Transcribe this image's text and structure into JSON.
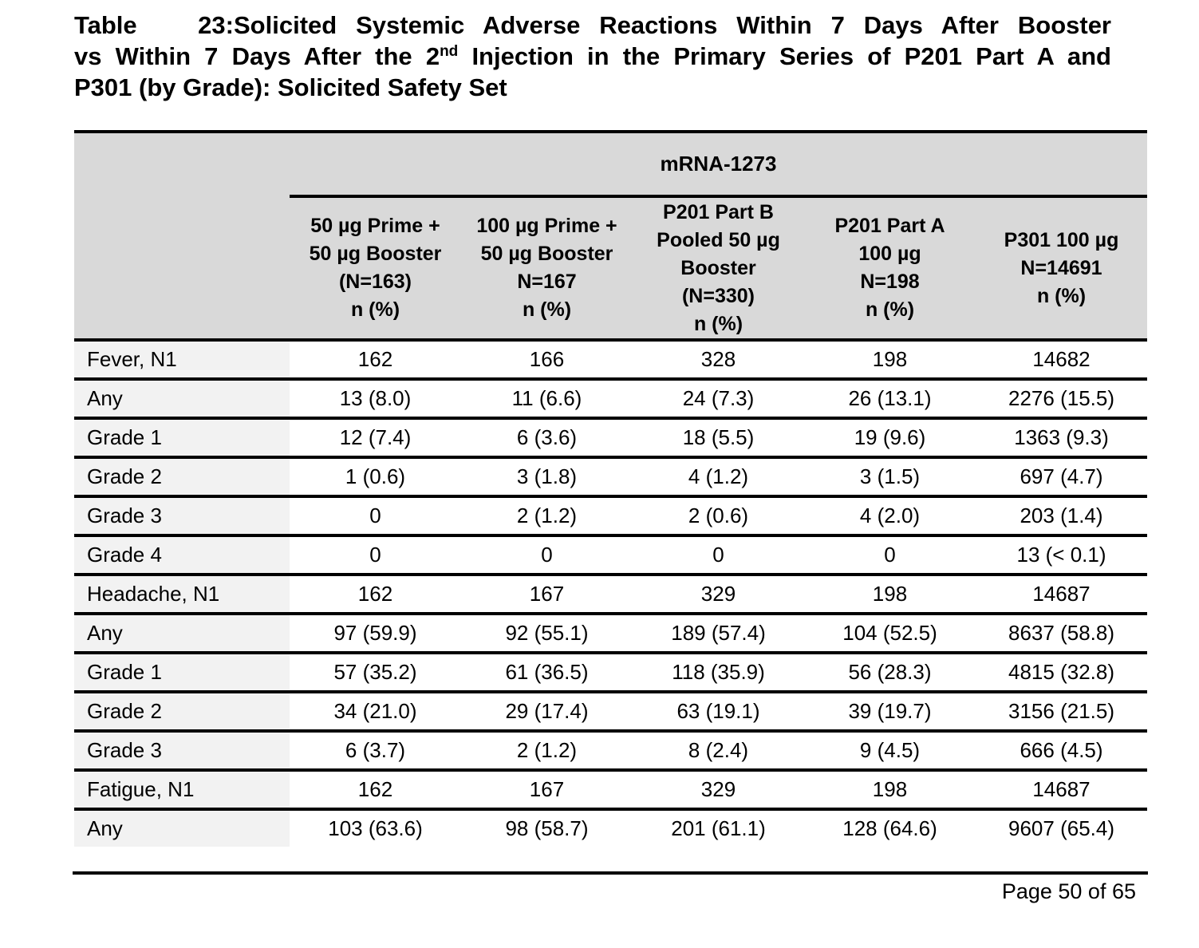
{
  "title": {
    "label": "Table 23:",
    "line1": "Solicited Systemic Adverse Reactions Within 7 Days After Booster",
    "line2_before_sup": "vs Within 7 Days After the 2",
    "line2_sup": "nd",
    "line2_after_sup": "Injection in the Primary Series of P201 Part A and",
    "line3": "P301 (by Grade): Solicited Safety Set"
  },
  "table": {
    "group_header": "mRNA-1273",
    "column_headers": [
      "50 µg Prime +\n50 µg Booster\n(N=163)\nn (%)",
      "100 µg Prime +\n50 µg Booster\nN=167\nn (%)",
      "P201 Part B\nPooled 50 µg\nBooster\n(N=330)\nn (%)",
      "P201 Part A\n100 µg\nN=198\nn (%)",
      "P301 100 µg\nN=14691\nn (%)"
    ],
    "rows": [
      {
        "label": "Fever, N1",
        "values": [
          "162",
          "166",
          "328",
          "198",
          "14682"
        ]
      },
      {
        "label": "Any",
        "values": [
          "13 (8.0)",
          "11 (6.6)",
          "24 (7.3)",
          "26 (13.1)",
          "2276 (15.5)"
        ]
      },
      {
        "label": "Grade 1",
        "values": [
          "12 (7.4)",
          "6 (3.6)",
          "18 (5.5)",
          "19 (9.6)",
          "1363 (9.3)"
        ]
      },
      {
        "label": "Grade 2",
        "values": [
          "1 (0.6)",
          "3 (1.8)",
          "4 (1.2)",
          "3 (1.5)",
          "697 (4.7)"
        ]
      },
      {
        "label": "Grade 3",
        "values": [
          "0",
          "2 (1.2)",
          "2 (0.6)",
          "4 (2.0)",
          "203 (1.4)"
        ]
      },
      {
        "label": "Grade 4",
        "values": [
          "0",
          "0",
          "0",
          "0",
          "13 (< 0.1)"
        ]
      },
      {
        "label": "Headache, N1",
        "values": [
          "162",
          "167",
          "329",
          "198",
          "14687"
        ]
      },
      {
        "label": "Any",
        "values": [
          "97 (59.9)",
          "92 (55.1)",
          "189 (57.4)",
          "104 (52.5)",
          "8637 (58.8)"
        ]
      },
      {
        "label": "Grade 1",
        "values": [
          "57 (35.2)",
          "61 (36.5)",
          "118 (35.9)",
          "56 (28.3)",
          "4815 (32.8)"
        ]
      },
      {
        "label": "Grade 2",
        "values": [
          "34 (21.0)",
          "29 (17.4)",
          "63 (19.1)",
          "39 (19.7)",
          "3156 (21.5)"
        ]
      },
      {
        "label": "Grade 3",
        "values": [
          "6 (3.7)",
          "2 (1.2)",
          "8 (2.4)",
          "9 (4.5)",
          "666 (4.5)"
        ]
      },
      {
        "label": "Fatigue, N1",
        "values": [
          "162",
          "167",
          "329",
          "198",
          "14687"
        ]
      },
      {
        "label": "Any",
        "values": [
          "103 (63.6)",
          "98 (58.7)",
          "201 (61.1)",
          "128 (64.6)",
          "9607 (65.4)"
        ]
      }
    ]
  },
  "footer": {
    "page_label": "Page 50 of 65"
  },
  "colors": {
    "header_bg": "#d9d9d9",
    "label_bg": "#f2f2f2",
    "rule": "#000000"
  }
}
